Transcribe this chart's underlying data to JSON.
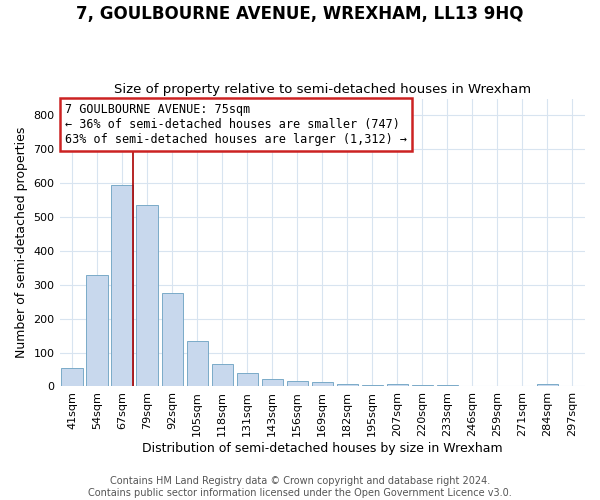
{
  "title": "7, GOULBOURNE AVENUE, WREXHAM, LL13 9HQ",
  "subtitle": "Size of property relative to semi-detached houses in Wrexham",
  "xlabel": "Distribution of semi-detached houses by size in Wrexham",
  "ylabel": "Number of semi-detached properties",
  "categories": [
    "41sqm",
    "54sqm",
    "67sqm",
    "79sqm",
    "92sqm",
    "105sqm",
    "118sqm",
    "131sqm",
    "143sqm",
    "156sqm",
    "169sqm",
    "182sqm",
    "195sqm",
    "207sqm",
    "220sqm",
    "233sqm",
    "246sqm",
    "259sqm",
    "271sqm",
    "284sqm",
    "297sqm"
  ],
  "values": [
    55,
    330,
    595,
    535,
    275,
    135,
    65,
    40,
    22,
    17,
    12,
    7,
    5,
    7,
    5,
    5,
    2,
    2,
    0,
    8,
    2
  ],
  "bar_color": "#c8d8ed",
  "bar_edge_color": "#7aaac8",
  "property_bin_index": 2,
  "vline_color": "#aa0000",
  "annotation_box_color": "#ffffff",
  "annotation_border_color": "#cc2222",
  "annotation_text_line1": "7 GOULBOURNE AVENUE: 75sqm",
  "annotation_text_line2": "← 36% of semi-detached houses are smaller (747)",
  "annotation_text_line3": "63% of semi-detached houses are larger (1,312) →",
  "ylim": [
    0,
    850
  ],
  "yticks": [
    0,
    100,
    200,
    300,
    400,
    500,
    600,
    700,
    800
  ],
  "footer_line1": "Contains HM Land Registry data © Crown copyright and database right 2024.",
  "footer_line2": "Contains public sector information licensed under the Open Government Licence v3.0.",
  "background_color": "#ffffff",
  "plot_background_color": "#ffffff",
  "grid_color": "#d8e4f0",
  "title_fontsize": 12,
  "subtitle_fontsize": 9.5,
  "axis_label_fontsize": 9,
  "tick_fontsize": 8,
  "annotation_fontsize": 8.5,
  "footer_fontsize": 7
}
